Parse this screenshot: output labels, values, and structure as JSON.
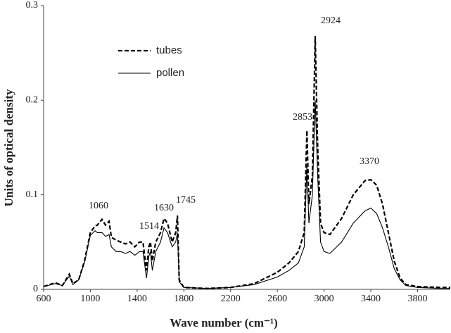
{
  "chart_data": {
    "type": "line",
    "xlabel": "Wave number (cm⁻¹)",
    "ylabel": "Units of optical density",
    "xlim": [
      600,
      4080
    ],
    "xticks": [
      600,
      1000,
      1400,
      1800,
      2200,
      2600,
      3000,
      3400,
      3800
    ],
    "ylim": [
      0,
      0.3
    ],
    "yticks": [
      0,
      0.1,
      0.2,
      0.3
    ],
    "grid": false,
    "legend": "upper left",
    "annotations": [
      "1060",
      "1514",
      "1630",
      "1745",
      "2853",
      "2924",
      "3370"
    ],
    "x": [
      600,
      700,
      760,
      820,
      850,
      900,
      950,
      1000,
      1040,
      1060,
      1100,
      1130,
      1160,
      1180,
      1220,
      1260,
      1300,
      1340,
      1380,
      1420,
      1450,
      1480,
      1500,
      1514,
      1530,
      1560,
      1600,
      1630,
      1660,
      1700,
      1730,
      1745,
      1760,
      1800,
      2000,
      2200,
      2400,
      2600,
      2700,
      2780,
      2830,
      2853,
      2870,
      2900,
      2924,
      2945,
      2970,
      3000,
      3050,
      3150,
      3250,
      3350,
      3400,
      3450,
      3500,
      3550,
      3600,
      3650,
      3700,
      3800,
      4000,
      4080
    ],
    "series": [
      {
        "name": "tubes",
        "color": "#000000",
        "dash": "6,3",
        "values": [
          0.003,
          0.007,
          0.004,
          0.016,
          0.006,
          0.01,
          0.03,
          0.06,
          0.067,
          0.068,
          0.074,
          0.068,
          0.072,
          0.055,
          0.052,
          0.05,
          0.048,
          0.05,
          0.045,
          0.05,
          0.05,
          0.02,
          0.045,
          0.05,
          0.03,
          0.05,
          0.06,
          0.075,
          0.07,
          0.05,
          0.06,
          0.078,
          0.01,
          0.002,
          0.001,
          0.002,
          0.006,
          0.018,
          0.028,
          0.04,
          0.06,
          0.168,
          0.09,
          0.12,
          0.268,
          0.15,
          0.07,
          0.06,
          0.058,
          0.075,
          0.1,
          0.115,
          0.116,
          0.11,
          0.09,
          0.06,
          0.03,
          0.012,
          0.005,
          0.003,
          0.002,
          0.002
        ]
      },
      {
        "name": "pollen",
        "color": "#000000",
        "values": [
          0.003,
          0.006,
          0.004,
          0.014,
          0.005,
          0.01,
          0.028,
          0.057,
          0.062,
          0.06,
          0.06,
          0.056,
          0.058,
          0.045,
          0.04,
          0.04,
          0.038,
          0.04,
          0.036,
          0.04,
          0.04,
          0.012,
          0.035,
          0.04,
          0.02,
          0.04,
          0.05,
          0.065,
          0.06,
          0.045,
          0.05,
          0.06,
          0.008,
          0.002,
          0.001,
          0.002,
          0.005,
          0.013,
          0.02,
          0.028,
          0.045,
          0.13,
          0.07,
          0.1,
          0.2,
          0.12,
          0.05,
          0.04,
          0.038,
          0.05,
          0.07,
          0.083,
          0.086,
          0.08,
          0.065,
          0.045,
          0.022,
          0.01,
          0.004,
          0.002,
          0.001,
          0.001
        ]
      }
    ]
  }
}
